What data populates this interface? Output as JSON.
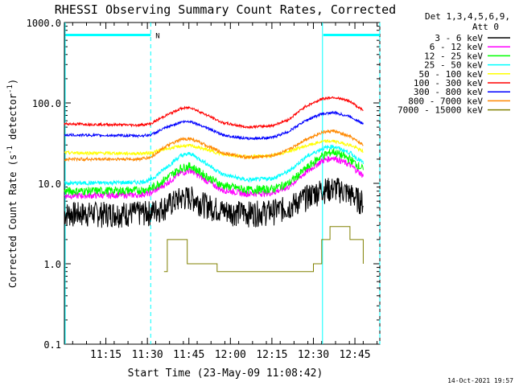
{
  "chart_data": {
    "type": "line",
    "title": "RHESSI Observing Summary Count Rates, Corrected",
    "xlabel": "Start Time (23-May-09 11:08:42)",
    "ylabel_main": "Corrected Count Rate (s",
    "ylabel_sup1": "-1",
    "ylabel_mid": " detector",
    "ylabel_sup2": "-1",
    "ylabel_end": ")",
    "y_scale": "log",
    "ylim": [
      0.1,
      1000
    ],
    "xlim_minutes": [
      11.0,
      12.9
    ],
    "x_ticks": [
      {
        "v": 11.25,
        "label": "11:15"
      },
      {
        "v": 11.5,
        "label": "11:30"
      },
      {
        "v": 11.75,
        "label": "11:45"
      },
      {
        "v": 12.0,
        "label": "12:00"
      },
      {
        "v": 12.25,
        "label": "12:15"
      },
      {
        "v": 12.5,
        "label": "12:30"
      },
      {
        "v": 12.75,
        "label": "12:45"
      }
    ],
    "y_ticks": [
      {
        "v": 1000,
        "label": "1000.0"
      },
      {
        "v": 100,
        "label": "100.0"
      },
      {
        "v": 10,
        "label": "10.0"
      },
      {
        "v": 1,
        "label": "1.0"
      },
      {
        "v": 0.1,
        "label": "0.1"
      }
    ],
    "legend_header": [
      "Det 1,3,4,5,6,9,",
      "Att 0"
    ],
    "legend_placement": "right",
    "timestamp": "14-Oct-2021 19:57",
    "night_marker": "N",
    "series": [
      {
        "name": "3 - 6 keV",
        "color": "#000000",
        "noise": 0.12,
        "values": [
          [
            11.0,
            4.3
          ],
          [
            11.45,
            4.4
          ],
          [
            11.52,
            4.5
          ],
          [
            11.6,
            5.2
          ],
          [
            11.7,
            6.7
          ],
          [
            11.76,
            6.9
          ],
          [
            11.85,
            5.6
          ],
          [
            11.95,
            4.7
          ],
          [
            12.1,
            4.4
          ],
          [
            12.25,
            4.6
          ],
          [
            12.35,
            5.2
          ],
          [
            12.45,
            6.8
          ],
          [
            12.55,
            8.6
          ],
          [
            12.65,
            8.8
          ],
          [
            12.72,
            7.5
          ],
          [
            12.8,
            6.0
          ]
        ]
      },
      {
        "name": "6 - 12 keV",
        "color": "#ff00ff",
        "noise": 0.03,
        "values": [
          [
            11.0,
            7.0
          ],
          [
            11.45,
            7.2
          ],
          [
            11.52,
            7.6
          ],
          [
            11.6,
            9.5
          ],
          [
            11.7,
            13.5
          ],
          [
            11.76,
            14.5
          ],
          [
            11.85,
            11.0
          ],
          [
            11.95,
            8.3
          ],
          [
            12.1,
            7.4
          ],
          [
            12.25,
            7.6
          ],
          [
            12.35,
            9.0
          ],
          [
            12.45,
            13.5
          ],
          [
            12.55,
            19.0
          ],
          [
            12.62,
            21.0
          ],
          [
            12.72,
            17.0
          ],
          [
            12.8,
            12.5
          ]
        ]
      },
      {
        "name": "12 - 25 keV",
        "color": "#00ff00",
        "noise": 0.04,
        "values": [
          [
            11.0,
            8.0
          ],
          [
            11.45,
            8.2
          ],
          [
            11.52,
            8.6
          ],
          [
            11.6,
            11.0
          ],
          [
            11.7,
            15.5
          ],
          [
            11.76,
            16.5
          ],
          [
            11.85,
            12.5
          ],
          [
            11.95,
            9.5
          ],
          [
            12.1,
            8.3
          ],
          [
            12.25,
            8.5
          ],
          [
            12.35,
            10.0
          ],
          [
            12.45,
            15.0
          ],
          [
            12.55,
            22.0
          ],
          [
            12.62,
            25.0
          ],
          [
            12.72,
            20.0
          ],
          [
            12.8,
            15.0
          ]
        ]
      },
      {
        "name": "25 - 50 keV",
        "color": "#00ffff",
        "noise": 0.02,
        "values": [
          [
            11.0,
            10.0
          ],
          [
            11.45,
            10.3
          ],
          [
            11.52,
            11.0
          ],
          [
            11.6,
            15.0
          ],
          [
            11.7,
            22.0
          ],
          [
            11.76,
            23.5
          ],
          [
            11.85,
            18.0
          ],
          [
            11.95,
            13.0
          ],
          [
            12.1,
            11.0
          ],
          [
            12.25,
            11.5
          ],
          [
            12.35,
            14.0
          ],
          [
            12.45,
            21.0
          ],
          [
            12.55,
            27.0
          ],
          [
            12.62,
            29.0
          ],
          [
            12.72,
            24.0
          ],
          [
            12.8,
            18.0
          ]
        ]
      },
      {
        "name": "50 - 100 keV",
        "color": "#ffff00",
        "noise": 0.015,
        "values": [
          [
            11.0,
            24.0
          ],
          [
            11.45,
            23.5
          ],
          [
            11.52,
            24.0
          ],
          [
            11.6,
            26.5
          ],
          [
            11.7,
            29.0
          ],
          [
            11.76,
            29.5
          ],
          [
            11.85,
            26.5
          ],
          [
            11.95,
            23.0
          ],
          [
            12.1,
            21.5
          ],
          [
            12.25,
            22.0
          ],
          [
            12.35,
            25.0
          ],
          [
            12.45,
            29.0
          ],
          [
            12.55,
            33.0
          ],
          [
            12.62,
            33.5
          ],
          [
            12.72,
            30.0
          ],
          [
            12.8,
            25.0
          ]
        ]
      },
      {
        "name": "100 - 300 keV",
        "color": "#ff0000",
        "noise": 0.012,
        "values": [
          [
            11.0,
            55.0
          ],
          [
            11.45,
            53.0
          ],
          [
            11.52,
            55.0
          ],
          [
            11.6,
            68.0
          ],
          [
            11.7,
            85.0
          ],
          [
            11.76,
            88.0
          ],
          [
            11.85,
            72.0
          ],
          [
            11.95,
            57.0
          ],
          [
            12.1,
            50.0
          ],
          [
            12.25,
            52.0
          ],
          [
            12.35,
            62.0
          ],
          [
            12.45,
            90.0
          ],
          [
            12.55,
            112.0
          ],
          [
            12.62,
            118.0
          ],
          [
            12.72,
            105.0
          ],
          [
            12.8,
            80.0
          ]
        ]
      },
      {
        "name": "300 - 800 keV",
        "color": "#0000ff",
        "noise": 0.012,
        "values": [
          [
            11.0,
            40.0
          ],
          [
            11.45,
            39.0
          ],
          [
            11.52,
            40.0
          ],
          [
            11.6,
            48.0
          ],
          [
            11.7,
            58.0
          ],
          [
            11.76,
            59.0
          ],
          [
            11.85,
            50.0
          ],
          [
            11.95,
            40.0
          ],
          [
            12.1,
            36.0
          ],
          [
            12.25,
            37.0
          ],
          [
            12.35,
            44.0
          ],
          [
            12.45,
            60.0
          ],
          [
            12.55,
            73.0
          ],
          [
            12.62,
            76.0
          ],
          [
            12.72,
            68.0
          ],
          [
            12.8,
            55.0
          ]
        ]
      },
      {
        "name": "800 - 7000 keV",
        "color": "#ff8800",
        "noise": 0.015,
        "values": [
          [
            11.0,
            20.0
          ],
          [
            11.45,
            20.0
          ],
          [
            11.52,
            21.0
          ],
          [
            11.6,
            28.0
          ],
          [
            11.7,
            35.0
          ],
          [
            11.76,
            36.0
          ],
          [
            11.85,
            30.0
          ],
          [
            11.95,
            24.0
          ],
          [
            12.1,
            21.0
          ],
          [
            12.25,
            22.0
          ],
          [
            12.35,
            26.0
          ],
          [
            12.45,
            35.0
          ],
          [
            12.55,
            43.0
          ],
          [
            12.62,
            45.0
          ],
          [
            12.72,
            38.0
          ],
          [
            12.8,
            30.0
          ]
        ]
      },
      {
        "name": "7000 - 15000 keV",
        "color": "#808000",
        "noise": 0.0,
        "values": [
          [
            11.6,
            0.8
          ],
          [
            11.62,
            2.0
          ],
          [
            11.72,
            2.0
          ],
          [
            11.74,
            1.0
          ],
          [
            11.9,
            1.0
          ],
          [
            11.92,
            0.8
          ],
          [
            12.5,
            1.0
          ],
          [
            12.55,
            2.0
          ],
          [
            12.6,
            2.9
          ],
          [
            12.7,
            2.9
          ],
          [
            12.72,
            2.0
          ],
          [
            12.8,
            1.0
          ]
        ]
      }
    ],
    "attenuator_markers": [
      {
        "label": "night",
        "x_start": 11.0,
        "x_end": 11.52,
        "y": 700
      },
      {
        "label": "night",
        "x_start": 12.55,
        "x_end": 12.9,
        "y": 700
      }
    ]
  }
}
